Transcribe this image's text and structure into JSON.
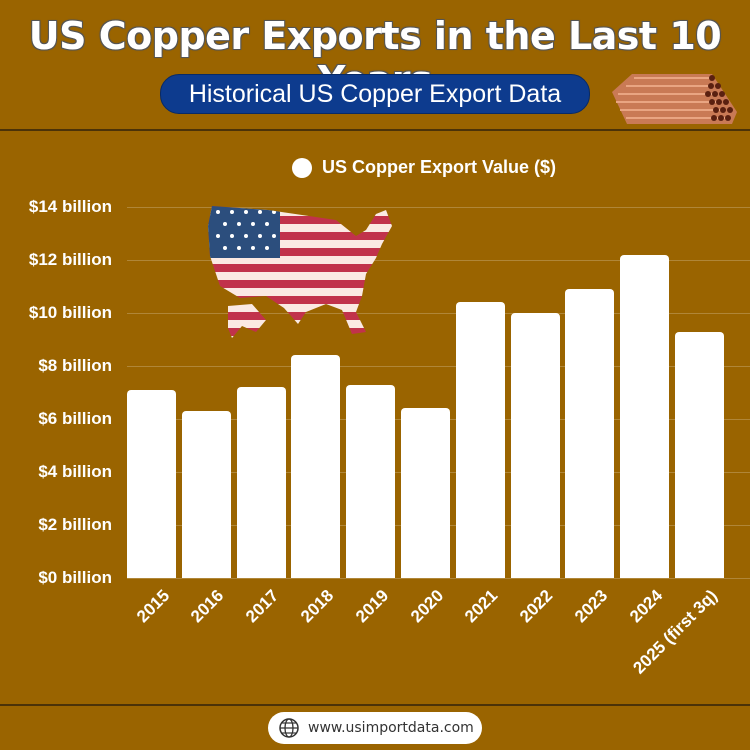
{
  "header": {
    "title": "US Copper Exports in the Last 10 Years",
    "subtitle": "Historical US Copper Export Data",
    "image": "copper-pipes-icon"
  },
  "decor": {
    "map": "us-flag-map-icon"
  },
  "footer": {
    "icon": "globe-icon",
    "website": "www.usimportdata.com"
  },
  "colors": {
    "background": "#9a6400",
    "bars": "#ffffff",
    "subtitle_pill": "#0d3b8e",
    "divider": "#4b3208"
  },
  "chart_data": {
    "type": "bar",
    "title": "US Copper Exports in the Last 10 Years",
    "subtitle": "Historical US Copper Export Data",
    "xlabel": "",
    "ylabel": "",
    "legend": [
      "US Copper Export Value ($)"
    ],
    "legend_position": "top",
    "grid": true,
    "ylim": [
      0,
      14
    ],
    "yticks": [
      "$0 billion",
      "$2 billion",
      "$4 billion",
      "$6 billion",
      "$8 billion",
      "$10 billion",
      "$12 billion",
      "$14 billion"
    ],
    "categories": [
      "2015",
      "2016",
      "2017",
      "2018",
      "2019",
      "2020",
      "2021",
      "2022",
      "2023",
      "2024",
      "2025 (first 3q)"
    ],
    "series": [
      {
        "name": "US Copper Export Value ($)",
        "unit": "billion USD",
        "values": [
          7.1,
          6.3,
          7.2,
          8.4,
          7.3,
          6.4,
          10.4,
          10.0,
          10.9,
          12.2,
          9.3
        ]
      }
    ]
  }
}
